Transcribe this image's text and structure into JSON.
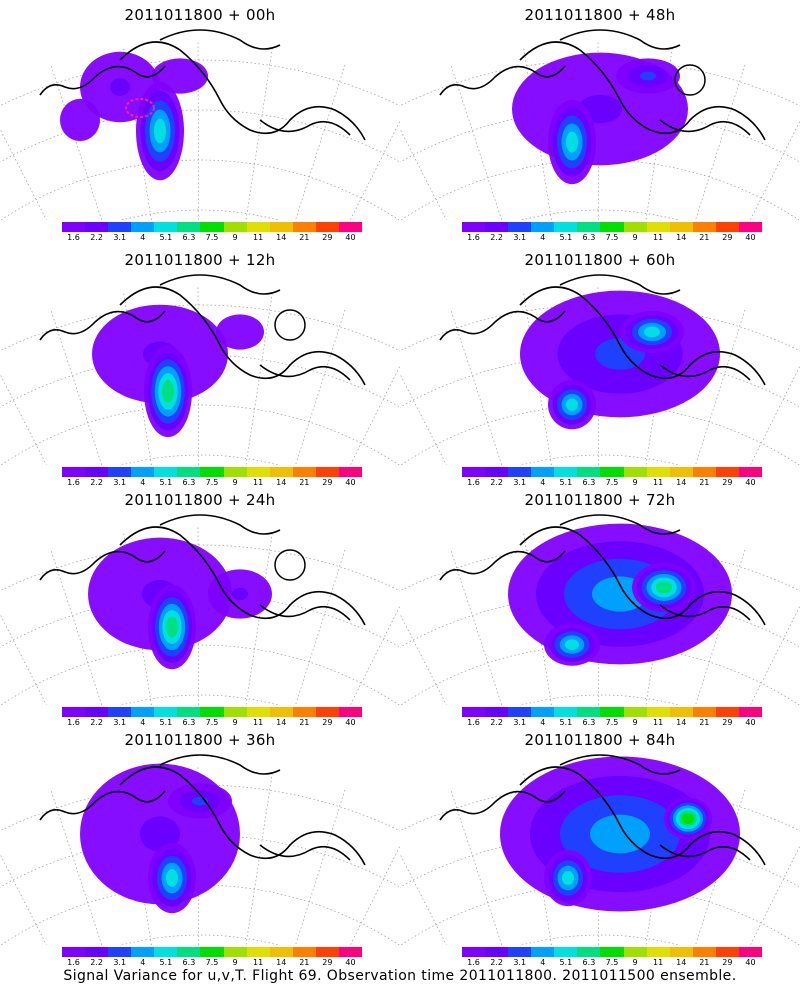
{
  "panels": [
    {
      "title": "2011011800 + 00h",
      "blobs": [
        [
          0.3,
          0.35,
          0.1,
          0.1,
          1
        ],
        [
          0.4,
          0.55,
          0.06,
          0.14,
          4
        ],
        [
          0.45,
          0.3,
          0.07,
          0.05,
          0
        ],
        [
          0.2,
          0.5,
          0.05,
          0.06,
          0
        ]
      ],
      "red": true
    },
    {
      "title": "2011011800 + 48h",
      "blobs": [
        [
          0.5,
          0.45,
          0.22,
          0.16,
          1
        ],
        [
          0.43,
          0.6,
          0.06,
          0.12,
          4
        ],
        [
          0.62,
          0.3,
          0.08,
          0.05,
          2
        ]
      ],
      "circle": true
    },
    {
      "title": "2011011800 + 12h",
      "blobs": [
        [
          0.4,
          0.45,
          0.17,
          0.14,
          1
        ],
        [
          0.42,
          0.62,
          0.06,
          0.13,
          5
        ],
        [
          0.6,
          0.35,
          0.06,
          0.05,
          0
        ]
      ],
      "circle": true
    },
    {
      "title": "2011011800 + 60h",
      "blobs": [
        [
          0.55,
          0.45,
          0.25,
          0.18,
          2
        ],
        [
          0.43,
          0.68,
          0.06,
          0.07,
          4
        ],
        [
          0.63,
          0.35,
          0.08,
          0.06,
          4
        ]
      ]
    },
    {
      "title": "2011011800 + 24h",
      "blobs": [
        [
          0.4,
          0.45,
          0.18,
          0.16,
          1
        ],
        [
          0.43,
          0.6,
          0.06,
          0.12,
          5
        ],
        [
          0.6,
          0.45,
          0.08,
          0.07,
          1
        ]
      ],
      "circle": true
    },
    {
      "title": "2011011800 + 72h",
      "blobs": [
        [
          0.55,
          0.45,
          0.28,
          0.2,
          3
        ],
        [
          0.43,
          0.68,
          0.07,
          0.06,
          4
        ],
        [
          0.66,
          0.42,
          0.08,
          0.07,
          5
        ]
      ]
    },
    {
      "title": "2011011800 + 36h",
      "blobs": [
        [
          0.4,
          0.45,
          0.2,
          0.2,
          1
        ],
        [
          0.43,
          0.65,
          0.06,
          0.1,
          4
        ],
        [
          0.5,
          0.3,
          0.08,
          0.05,
          2
        ]
      ]
    },
    {
      "title": "2011011800 + 84h",
      "blobs": [
        [
          0.55,
          0.45,
          0.3,
          0.22,
          3
        ],
        [
          0.42,
          0.65,
          0.06,
          0.08,
          4
        ],
        [
          0.72,
          0.38,
          0.06,
          0.06,
          6
        ]
      ]
    }
  ],
  "colorbar": {
    "colors": [
      "#8000ff",
      "#6a00ff",
      "#2040ff",
      "#00a0ff",
      "#00e0e0",
      "#00e080",
      "#00e000",
      "#a0e000",
      "#e0e000",
      "#f0c000",
      "#ff8000",
      "#ff4000",
      "#ff0080"
    ],
    "labels": [
      "1.6",
      "2.2",
      "3.1",
      "4",
      "5.1",
      "6.3",
      "7.5",
      "9",
      "11",
      "14",
      "21",
      "29",
      "40"
    ]
  },
  "footer": "Signal Variance for u,v,T. Flight 69. Observation time 2011011800. 2011011500 ensemble."
}
